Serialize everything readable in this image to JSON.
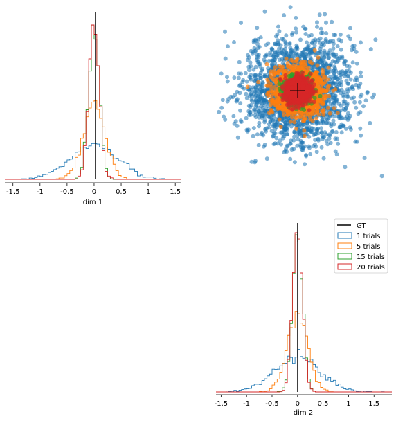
{
  "chart_data": [
    {
      "panel": "top-left",
      "type": "histogram",
      "xlabel": "dim 1",
      "xticks": [
        "-1.5",
        "-1",
        "-0.5",
        "0",
        "0.5",
        "1",
        "1.5"
      ],
      "xlim": [
        -1.65,
        1.6
      ],
      "ground_truth_x": 0,
      "series": [
        {
          "name": "1 trials",
          "std": 0.44
        },
        {
          "name": "5 trials",
          "std": 0.2
        },
        {
          "name": "15 trials",
          "std": 0.1
        },
        {
          "name": "20 trials",
          "std": 0.095
        }
      ]
    },
    {
      "panel": "top-right",
      "type": "scatter",
      "marker": "+",
      "marker_position": [
        0,
        0
      ],
      "series": [
        {
          "name": "1 trials",
          "std": 0.44
        },
        {
          "name": "5 trials",
          "std": 0.2
        },
        {
          "name": "15 trials",
          "std": 0.1
        },
        {
          "name": "20 trials",
          "std": 0.095
        }
      ]
    },
    {
      "panel": "bottom-right",
      "type": "histogram",
      "xlabel": "dim 2",
      "xticks": [
        "-1.5",
        "-1",
        "-0.5",
        "0",
        "0.5",
        "1",
        "1.5"
      ],
      "xlim": [
        -1.6,
        1.85
      ],
      "ground_truth_x": 0,
      "series": [
        {
          "name": "1 trials",
          "std": 0.44
        },
        {
          "name": "5 trials",
          "std": 0.2
        },
        {
          "name": "15 trials",
          "std": 0.1
        },
        {
          "name": "20 trials",
          "std": 0.095
        }
      ],
      "legend": {
        "position": "top-right",
        "entries": [
          "GT",
          "1 trials",
          "5 trials",
          "15 trials",
          "20 trials"
        ]
      }
    }
  ],
  "colors": {
    "gt": "#000000",
    "series": [
      "#1f77b4",
      "#ff7f0e",
      "#2ca02c",
      "#d62728"
    ]
  }
}
